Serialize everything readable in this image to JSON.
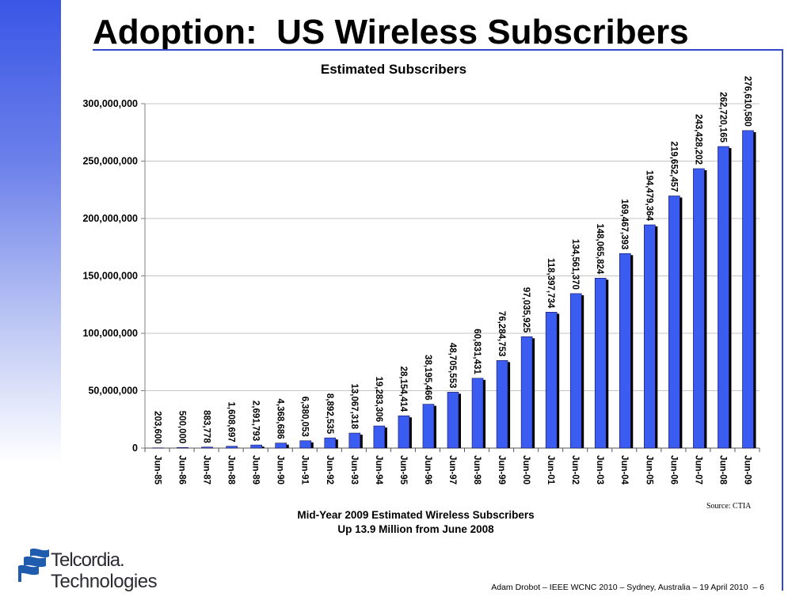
{
  "slide": {
    "title": "Adoption:  US Wireless Subscribers",
    "footer": "Adam Drobot – IEEE WCNC 2010 – Sydney, Australia – 19 April 2010  – 6",
    "colors": {
      "accent": "#3348c8",
      "gradient_top": "#3a56e6",
      "logo": "#1f5cae"
    }
  },
  "logo": {
    "icon": "telcordia-flag-icon",
    "line1": "Telcordia.",
    "line2": "Technologies"
  },
  "chart_data": {
    "type": "bar",
    "title": "Estimated Subscribers",
    "xlabel": "",
    "ylabel": "",
    "grid": true,
    "legend": "none",
    "colors": {
      "bar": "#3a5cf0",
      "bar_shadow": "#000000",
      "gridline": "#c4c4c4"
    },
    "ylim": [
      0,
      300000000
    ],
    "yticks": [
      0,
      50000000,
      100000000,
      150000000,
      200000000,
      250000000,
      300000000
    ],
    "ytick_labels": [
      "0",
      "50,000,000",
      "100,000,000",
      "150,000,000",
      "200,000,000",
      "250,000,000",
      "300,000,000"
    ],
    "categories": [
      "Jun-85",
      "Jun-86",
      "Jun-87",
      "Jun-88",
      "Jun-89",
      "Jun-90",
      "Jun-91",
      "Jun-92",
      "Jun-93",
      "Jun-94",
      "Jun-95",
      "Jun-96",
      "Jun-97",
      "Jun-98",
      "Jun-99",
      "Jun-00",
      "Jun-01",
      "Jun-02",
      "Jun-03",
      "Jun-04",
      "Jun-05",
      "Jun-06",
      "Jun-07",
      "Jun-08",
      "Jun-09"
    ],
    "values": [
      203600,
      500000,
      883778,
      1608697,
      2691793,
      4368686,
      6380053,
      8892535,
      13067318,
      19283306,
      28154414,
      38195466,
      48705553,
      60831431,
      76284753,
      97035925,
      118397734,
      134561370,
      148065824,
      169467393,
      194479364,
      219652457,
      243428202,
      262720165,
      276610580
    ],
    "data_labels": [
      "203,600",
      "500,000",
      "883,778",
      "1,608,697",
      "2,691,793",
      "4,368,686",
      "6,380,053",
      "8,892,535",
      "13,067,318",
      "19,283,306",
      "28,154,414",
      "38,195,466",
      "48,705,553",
      "60,831,431",
      "76,284,753",
      "97,035,925",
      "118,397,734",
      "134,561,370",
      "148,065,824",
      "169,467,393",
      "194,479,364",
      "219,652,457",
      "243,428,202",
      "262,720,165",
      "276,610,580"
    ],
    "source": "Source: CTIA",
    "caption": [
      "Mid-Year 2009 Estimated Wireless Subscribers",
      "Up 13.9 Million from June 2008"
    ]
  }
}
